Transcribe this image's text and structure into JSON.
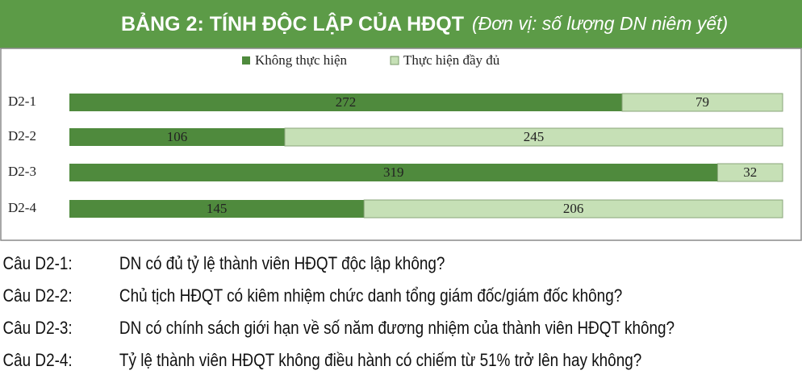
{
  "chart_data": {
    "type": "bar",
    "orientation": "horizontal",
    "stacked": true,
    "title": "BẢNG 2: TÍNH ĐỘC LẬP CỦA HĐQT",
    "subtitle": "(Đơn vị: số lượng DN niêm yết)",
    "categories": [
      "D2-1",
      "D2-2",
      "D2-3",
      "D2-4"
    ],
    "series": [
      {
        "name": "Không thực hiện",
        "color": "#4f8a3d",
        "values": [
          272,
          106,
          319,
          145
        ]
      },
      {
        "name": "Thực hiện đầy đủ",
        "color": "#c6e0b6",
        "values": [
          79,
          245,
          32,
          206
        ]
      }
    ],
    "legend": "top"
  },
  "notes": [
    {
      "label": "Câu D2-1:",
      "text": "DN có đủ tỷ lệ thành viên HĐQT độc lập không?"
    },
    {
      "label": "Câu D2-2:",
      "text": "Chủ tịch HĐQT có kiêm nhiệm chức danh tổng giám đốc/giám đốc không?"
    },
    {
      "label": "Câu D2-3:",
      "text": "DN có chính sách giới hạn về số năm đương nhiệm của thành viên HĐQT không?"
    },
    {
      "label": "Câu D2-4:",
      "text": "Tỷ lệ thành viên HĐQT không điều hành có chiếm từ 51% trở lên hay không?"
    }
  ]
}
